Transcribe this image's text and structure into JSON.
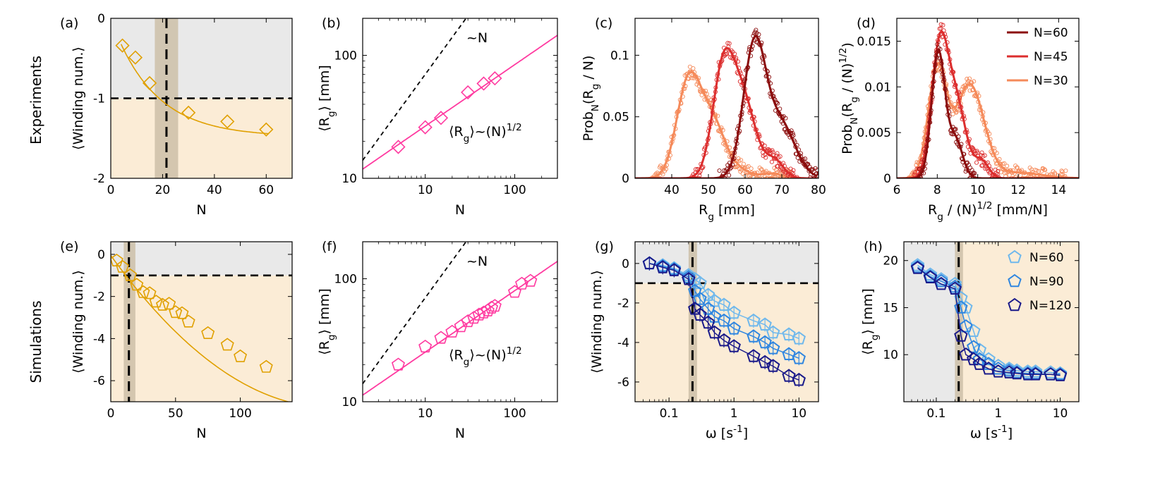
{
  "rows": [
    {
      "label": "Experiments"
    },
    {
      "label": "Simulations"
    }
  ],
  "colors": {
    "gold": "#e0a000",
    "pink": "#ff3aa0",
    "gray_bg": "#e9e9e9",
    "peach_bg": "#fbecd6",
    "band": "#cdbfa8",
    "exp_N60": "#8b0d0d",
    "exp_N45": "#dc2e2e",
    "exp_N30": "#f58a5a",
    "sim_N60": "#6fb8ec",
    "sim_N90": "#2f86e0",
    "sim_N120": "#1a1a8a"
  },
  "chart_data": [
    {
      "id": "a",
      "panel_label": "(a)",
      "type": "scatter",
      "xlabel": "N",
      "ylabel": "⟨Winding num.⟩",
      "xlim": [
        0,
        70
      ],
      "ylim": [
        -2,
        0
      ],
      "xticks": [
        "0",
        "20",
        "40",
        "60"
      ],
      "yticks": [
        "-2",
        "-1",
        "0"
      ],
      "threshold_y": -1,
      "vline_x": 21.5,
      "band": [
        17,
        26
      ],
      "x": [
        4.5,
        9.5,
        15,
        30,
        45,
        60
      ],
      "y": [
        -0.34,
        -0.49,
        -0.81,
        -1.18,
        -1.29,
        -1.39
      ],
      "fit": {
        "a": -1.48,
        "b": 1.47,
        "c": 0.06
      }
    },
    {
      "id": "b",
      "panel_label": "(b)",
      "type": "scatter",
      "xlabel": "N",
      "ylabel": "⟨R_g⟩ [mm]",
      "xscale": "log",
      "yscale": "log",
      "xlim": [
        2,
        300
      ],
      "ylim": [
        10,
        200
      ],
      "xticks": [
        "10",
        "100"
      ],
      "yticks": [
        "10",
        "100"
      ],
      "x": [
        5,
        10,
        15,
        30,
        45,
        60
      ],
      "y": [
        18,
        26,
        31,
        50,
        59,
        65
      ],
      "fit_label": "⟨R_g⟩~(N)^1/2",
      "ref_label": "~N",
      "fit": {
        "coef": 8.4,
        "exp": 0.5
      },
      "ref": {
        "coef": 7.0,
        "exp": 1.0
      }
    },
    {
      "id": "c",
      "panel_label": "(c)",
      "type": "line",
      "xlabel": "R_g [mm]",
      "ylabel": "Prob_N(R_g / N)",
      "xlim": [
        30,
        80
      ],
      "ylim": [
        0,
        0.13
      ],
      "xticks": [
        "40",
        "50",
        "60",
        "70",
        "80"
      ],
      "yticks": [
        "0",
        "0.05",
        "0.1"
      ],
      "series": [
        {
          "name": "N=30",
          "peaks": [
            [
              44.5,
              0.076,
              3.2
            ],
            [
              51,
              0.046,
              3.6
            ],
            [
              59,
              0.005,
              2.5
            ],
            [
              67,
              0.004,
              3
            ]
          ]
        },
        {
          "name": "N=45",
          "peaks": [
            [
              54,
              0.085,
              2.9
            ],
            [
              59.5,
              0.062,
              3.4
            ],
            [
              68,
              0.014,
              2.5
            ]
          ]
        },
        {
          "name": "N=60",
          "peaks": [
            [
              62.5,
              0.105,
              3.0
            ],
            [
              69.5,
              0.045,
              4.0
            ]
          ]
        }
      ]
    },
    {
      "id": "d",
      "panel_label": "(d)",
      "type": "line",
      "xlabel": "R_g / (N)^1/2 [mm/N]",
      "ylabel": "Prob_N(R_g / (N)^1/2)",
      "xlim": [
        6,
        15
      ],
      "ylim": [
        0,
        0.0175
      ],
      "xticks": [
        "6",
        "8",
        "10",
        "12",
        "14"
      ],
      "yticks": [
        "0",
        "0.005",
        "0.01",
        "0.015"
      ],
      "legend": [
        "N=60",
        "N=45",
        "N=30"
      ],
      "series": [
        {
          "name": "N=30",
          "peaks": [
            [
              8.0,
              0.0118,
              0.45
            ],
            [
              9.6,
              0.0102,
              0.7
            ],
            [
              12,
              0.0006,
              1.2
            ]
          ]
        },
        {
          "name": "N=45",
          "peaks": [
            [
              8.1,
              0.0133,
              0.4
            ],
            [
              8.9,
              0.0085,
              0.5
            ],
            [
              10.2,
              0.0018,
              0.35
            ]
          ]
        },
        {
          "name": "N=60",
          "peaks": [
            [
              8.05,
              0.0138,
              0.33
            ],
            [
              8.9,
              0.0042,
              0.35
            ]
          ]
        }
      ]
    },
    {
      "id": "e",
      "panel_label": "(e)",
      "type": "scatter",
      "xlabel": "N",
      "ylabel": "⟨Winding num.⟩",
      "xlim": [
        0,
        140
      ],
      "ylim": [
        -7,
        0.6
      ],
      "xticks": [
        "0",
        "50",
        "100"
      ],
      "yticks": [
        "-6",
        "-4",
        "-2",
        "0"
      ],
      "threshold_y": -1,
      "vline_x": 14,
      "band": [
        10,
        19
      ],
      "x": [
        4.5,
        9,
        15,
        20,
        25,
        30,
        35,
        40,
        45,
        50,
        55,
        60,
        75,
        90,
        100,
        120
      ],
      "y": [
        -0.3,
        -0.6,
        -1.0,
        -1.45,
        -1.8,
        -1.85,
        -2.25,
        -2.4,
        -2.35,
        -2.75,
        -2.8,
        -3.2,
        -3.75,
        -4.3,
        -4.85,
        -5.35
      ]
    },
    {
      "id": "f",
      "panel_label": "(f)",
      "type": "scatter",
      "xlabel": "N",
      "ylabel": "⟨R_g⟩ [mm]",
      "xscale": "log",
      "yscale": "log",
      "xlim": [
        2,
        300
      ],
      "ylim": [
        10,
        200
      ],
      "xticks": [
        "10",
        "100"
      ],
      "yticks": [
        "10",
        "100"
      ],
      "x": [
        5,
        10,
        15,
        20,
        25,
        30,
        35,
        40,
        45,
        50,
        55,
        60,
        100,
        120,
        150
      ],
      "y": [
        20,
        28,
        33,
        37,
        41,
        45,
        48,
        51,
        53,
        55,
        58,
        60,
        78,
        91,
        96
      ],
      "fit_label": "⟨R_g⟩~(N)^1/2",
      "ref_label": "~N",
      "fit": {
        "coef": 8.0,
        "exp": 0.5
      },
      "ref": {
        "coef": 7.0,
        "exp": 1.0
      }
    },
    {
      "id": "g",
      "panel_label": "(g)",
      "type": "line",
      "xlabel": "ω [s^-1]",
      "ylabel": "⟨Winding num.⟩",
      "xscale": "log",
      "xlim": [
        0.03,
        20
      ],
      "ylim": [
        -7,
        1.1
      ],
      "xticks": [
        "0.1",
        "1",
        "10"
      ],
      "yticks": [
        "-6",
        "-4",
        "-2",
        "0"
      ],
      "threshold_y": -1,
      "vline_x": 0.23,
      "band": [
        0.2,
        0.27
      ],
      "x": [
        0.05,
        0.08,
        0.12,
        0.2,
        0.25,
        0.3,
        0.4,
        0.5,
        0.7,
        1,
        2,
        3,
        4,
        7,
        10
      ],
      "series": [
        {
          "name": "N=60",
          "values": [
            0,
            -0.1,
            -0.25,
            -0.6,
            -0.8,
            -1.0,
            -1.6,
            -1.9,
            -2.1,
            -2.5,
            -2.9,
            -3.1,
            -3.5,
            -3.6,
            -3.8
          ]
        },
        {
          "name": "N=90",
          "values": [
            0,
            -0.15,
            -0.3,
            -0.7,
            -1.4,
            -1.8,
            -2.3,
            -2.7,
            -2.9,
            -3.3,
            -3.7,
            -4.0,
            -4.3,
            -4.6,
            -4.8
          ]
        },
        {
          "name": "N=120",
          "values": [
            0,
            -0.2,
            -0.35,
            -0.8,
            -2.3,
            -2.6,
            -3.0,
            -3.5,
            -3.9,
            -4.2,
            -4.7,
            -5.0,
            -5.2,
            -5.7,
            -5.9
          ]
        }
      ]
    },
    {
      "id": "h",
      "panel_label": "(h)",
      "type": "line",
      "xlabel": "ω [s^-1]",
      "ylabel": "⟨R_g⟩ [mm]",
      "xscale": "log",
      "xlim": [
        0.03,
        20
      ],
      "ylim": [
        5,
        22
      ],
      "xticks": [
        "0.1",
        "1",
        "10"
      ],
      "yticks": [
        "10",
        "15",
        "20"
      ],
      "vline_x": 0.23,
      "band": [
        0.2,
        0.27
      ],
      "legend": [
        "N=60",
        "N=90",
        "N=120"
      ],
      "x": [
        0.05,
        0.08,
        0.12,
        0.2,
        0.25,
        0.3,
        0.4,
        0.5,
        0.7,
        1,
        1.5,
        2,
        3,
        4,
        7,
        10
      ],
      "series": [
        {
          "name": "N=60",
          "values": [
            19.5,
            18.5,
            18.0,
            17.5,
            16.0,
            15.0,
            12.5,
            10.5,
            9.5,
            8.8,
            8.5,
            8.3,
            8.2,
            8.2,
            8.1,
            8.0
          ]
        },
        {
          "name": "N=90",
          "values": [
            19.3,
            18.3,
            17.8,
            17.2,
            15.0,
            13.0,
            10.8,
            9.5,
            9.0,
            8.5,
            8.3,
            8.1,
            8.0,
            8.0,
            7.9,
            7.9
          ]
        },
        {
          "name": "N=120",
          "values": [
            19.2,
            18.2,
            17.5,
            17.0,
            12.0,
            10.0,
            9.5,
            9.0,
            8.5,
            8.2,
            8.1,
            8.0,
            7.9,
            7.9,
            7.9,
            7.8
          ]
        }
      ]
    }
  ]
}
